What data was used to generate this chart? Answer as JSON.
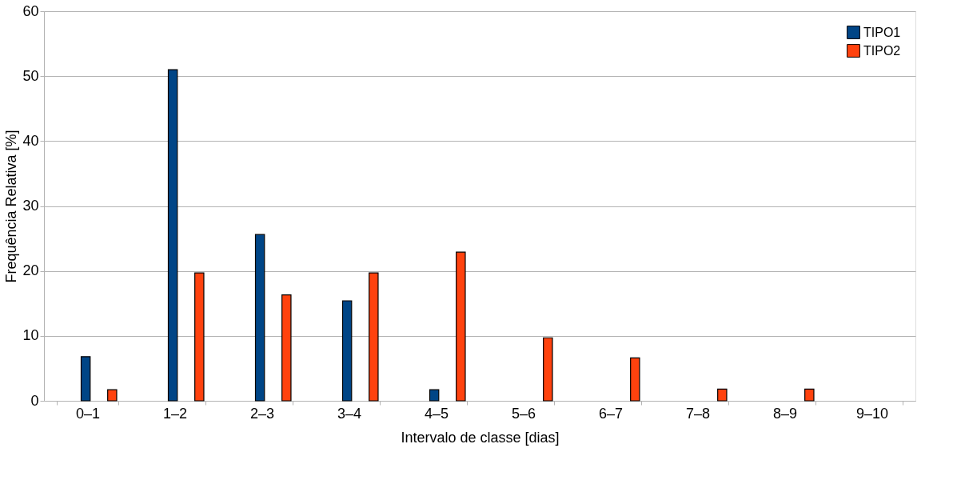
{
  "chart_data": {
    "type": "bar",
    "xlabel": "Intervalo de classe [dias]",
    "ylabel": "Frequência Relativa [%]",
    "categories": [
      "0–1",
      "1–2",
      "2–3",
      "3–4",
      "4–5",
      "5–6",
      "6–7",
      "7–8",
      "8–9",
      "9–10"
    ],
    "series": [
      {
        "name": "TIPO1",
        "color": "#004586",
        "values": [
          6.8,
          51.0,
          25.6,
          15.4,
          1.7,
          null,
          null,
          null,
          null,
          null
        ]
      },
      {
        "name": "TIPO2",
        "color": "#ff420e",
        "values": [
          1.7,
          19.7,
          16.3,
          19.7,
          22.9,
          9.7,
          6.6,
          1.8,
          1.8,
          null
        ]
      }
    ],
    "ylim": [
      0,
      60
    ],
    "yticks": [
      0,
      10,
      20,
      30,
      40,
      50,
      60
    ],
    "grid": "y",
    "legend": "top right"
  }
}
